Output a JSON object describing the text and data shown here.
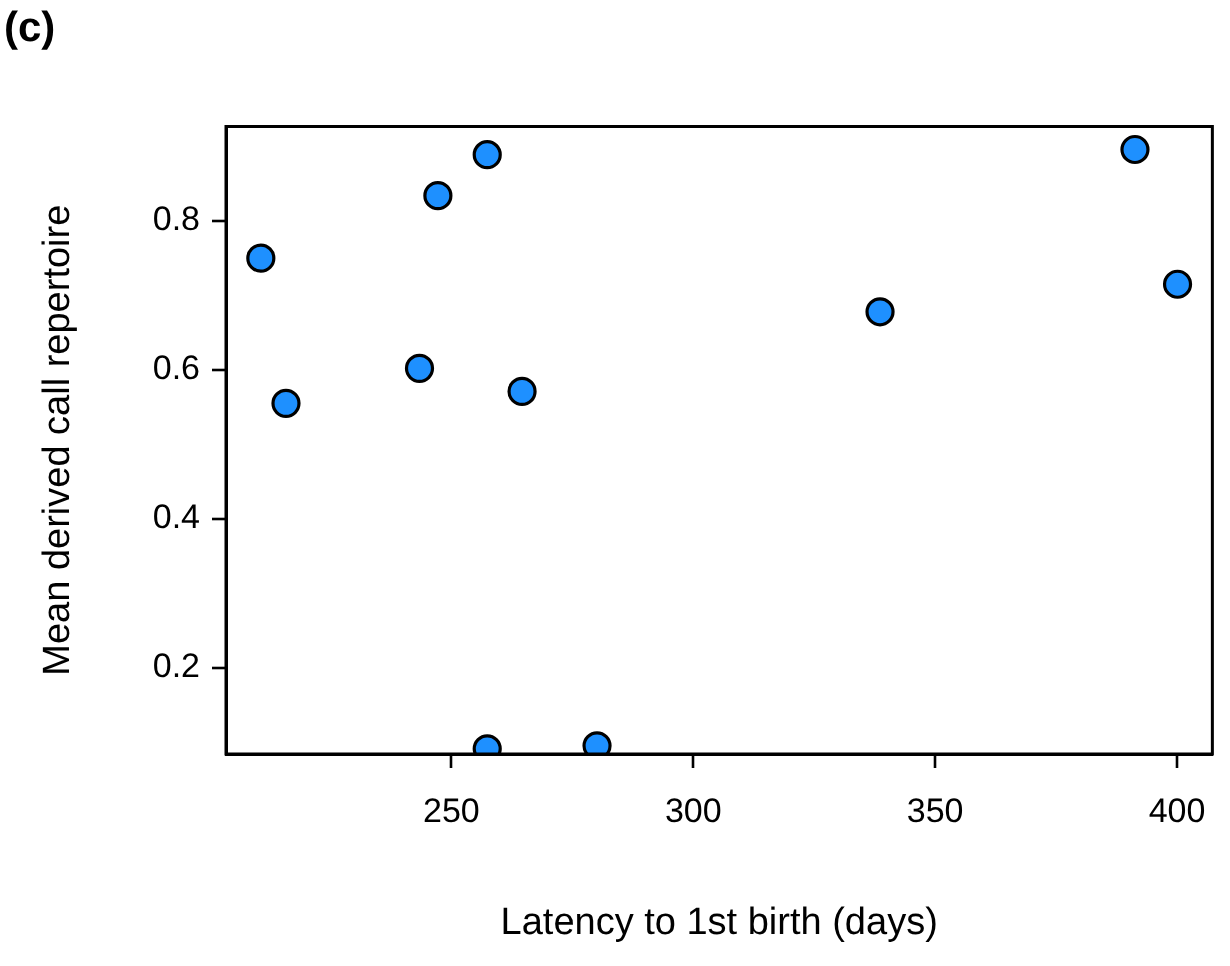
{
  "chart_data": {
    "type": "scatter",
    "title": "(c)",
    "xlabel": "Latency to 1st birth (days)",
    "ylabel": "Mean derived call repertoire",
    "x": [
      210.6,
      215.8,
      247.2,
      257.4,
      243.4,
      264.6,
      257.4,
      280.1,
      338.6,
      391.3,
      400.1
    ],
    "series": [
      {
        "color": "#1e90ff",
        "values": [
          0.75,
          0.555,
          0.834,
          0.889,
          0.602,
          0.571,
          0.091,
          0.095,
          0.678,
          0.896,
          0.715
        ]
      }
    ],
    "xlim": [
      203.4,
      407.3
    ],
    "xticks": [
      250,
      300,
      350,
      400
    ],
    "ylim": [
      0.084,
      0.927
    ],
    "yticks": [
      0.2,
      0.4,
      0.6,
      0.8
    ],
    "grid": false,
    "legend": false,
    "marker": "circle"
  }
}
